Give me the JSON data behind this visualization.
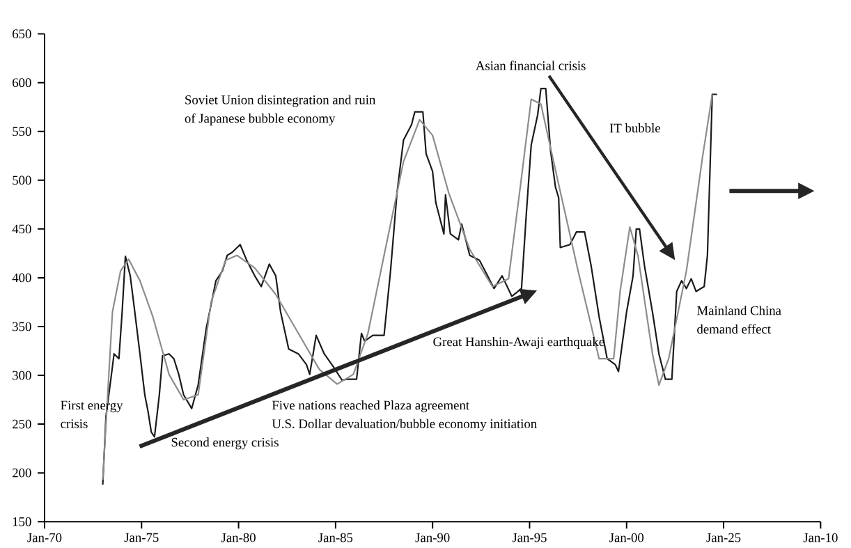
{
  "chart_data": {
    "type": "line",
    "xlim": [
      "1970-01",
      "2010-01"
    ],
    "ylim": [
      150,
      650
    ],
    "xticks": [
      {
        "value": "1970-01",
        "label": "Jan-70"
      },
      {
        "value": "1975-01",
        "label": "Jan-75"
      },
      {
        "value": "1980-01",
        "label": "Jan-80"
      },
      {
        "value": "1985-01",
        "label": "Jan-85"
      },
      {
        "value": "1990-01",
        "label": "Jan-90"
      },
      {
        "value": "1995-01",
        "label": "Jan-95"
      },
      {
        "value": "2000-01",
        "label": "Jan-00"
      },
      {
        "value": "2005-01",
        "label": "Jan-25"
      },
      {
        "value": "2010-01",
        "label": "Jan-10"
      }
    ],
    "yticks": [
      150,
      200,
      250,
      300,
      350,
      400,
      450,
      500,
      550,
      600,
      650
    ],
    "grid": false,
    "legend": false,
    "marker": "none",
    "line_style": "solid",
    "series": [
      {
        "color": "#1a1a1a",
        "x": [
          "1973-01",
          "1973-03",
          "1973-06",
          "1973-08",
          "1973-11",
          "1974-01",
          "1974-03",
          "1974-06",
          "1974-08",
          "1974-12",
          "1975-03",
          "1975-05",
          "1975-07",
          "1975-09",
          "1975-12",
          "1976-02",
          "1976-06",
          "1976-09",
          "1976-12",
          "1977-03",
          "1977-08",
          "1977-12",
          "1978-05",
          "1978-11",
          "1979-03",
          "1979-06",
          "1979-09",
          "1980-02",
          "1980-06",
          "1980-11",
          "1981-03",
          "1981-08",
          "1981-12",
          "1982-03",
          "1982-08",
          "1983-02",
          "1983-07",
          "1983-09",
          "1984-01",
          "1984-06",
          "1984-12",
          "1985-05",
          "1985-08",
          "1986-02",
          "1986-05",
          "1986-07",
          "1986-12",
          "1987-07",
          "1987-11",
          "1988-03",
          "1988-07",
          "1988-12",
          "1989-02",
          "1989-07",
          "1989-09",
          "1990-01",
          "1990-03",
          "1990-08",
          "1990-09",
          "1990-12",
          "1991-05",
          "1991-07",
          "1991-12",
          "1992-06",
          "1992-11",
          "1993-03",
          "1993-08",
          "1994-02",
          "1994-08",
          "1994-11",
          "1995-02",
          "1995-06",
          "1995-08",
          "1995-11",
          "1996-02",
          "1996-05",
          "1996-07",
          "1996-08",
          "1997-02",
          "1997-06",
          "1997-11",
          "1998-03",
          "1998-08",
          "1999-01",
          "1999-06",
          "1999-08",
          "2000-01",
          "2000-05",
          "2000-07",
          "2000-09",
          "2000-12",
          "2001-05",
          "2001-09",
          "2002-01",
          "2002-05",
          "2002-08",
          "2002-11",
          "2003-02",
          "2003-05",
          "2003-08",
          "2004-01",
          "2004-03",
          "2004-06",
          "2004-09"
        ],
        "values": [
          188,
          258,
          296,
          322,
          317,
          365,
          422,
          402,
          376,
          322,
          280,
          263,
          242,
          237,
          280,
          320,
          322,
          317,
          301,
          280,
          266,
          290,
          348,
          397,
          407,
          423,
          426,
          434,
          418,
          402,
          391,
          414,
          402,
          365,
          327,
          322,
          311,
          301,
          341,
          322,
          308,
          295,
          296,
          296,
          343,
          335,
          341,
          341,
          407,
          487,
          541,
          557,
          570,
          570,
          527,
          509,
          477,
          445,
          485,
          445,
          439,
          455,
          423,
          418,
          402,
          389,
          402,
          381,
          389,
          466,
          536,
          567,
          594,
          594,
          530,
          493,
          482,
          431,
          434,
          447,
          447,
          413,
          360,
          317,
          311,
          304,
          365,
          402,
          450,
          450,
          413,
          365,
          322,
          296,
          296,
          386,
          397,
          389,
          399,
          386,
          391,
          423,
          588,
          588
        ]
      },
      {
        "color": "#8c8c8c",
        "x": [
          "1973-01",
          "1973-07",
          "1973-12",
          "1974-05",
          "1974-12",
          "1975-08",
          "1976-06",
          "1977-03",
          "1977-12",
          "1978-08",
          "1979-05",
          "1979-12",
          "1980-11",
          "1981-12",
          "1983-02",
          "1984-03",
          "1985-02",
          "1985-12",
          "1986-09",
          "1987-07",
          "1988-07",
          "1989-05",
          "1990-01",
          "1990-11",
          "1991-12",
          "1993-02",
          "1993-12",
          "1994-08",
          "1995-02",
          "1995-08",
          "1996-06",
          "1997-07",
          "1998-08",
          "1999-05",
          "1999-09",
          "2000-03",
          "2000-08",
          "2001-05",
          "2001-09",
          "2002-03",
          "2003-02",
          "2003-12",
          "2004-06"
        ],
        "values": [
          193,
          365,
          407,
          419,
          397,
          360,
          301,
          275,
          280,
          375,
          418,
          423,
          410,
          383,
          343,
          306,
          291,
          301,
          343,
          423,
          519,
          562,
          546,
          487,
          429,
          391,
          399,
          503,
          583,
          578,
          503,
          407,
          317,
          317,
          386,
          452,
          423,
          322,
          290,
          317,
          407,
          524,
          588
        ]
      }
    ],
    "annotations": [
      "First energy",
      "crisis",
      "Second energy crisis",
      "Five nations reached Plaza agreement",
      "U.S. Dollar devaluation/bubble economy initiation",
      "Great Hanshin-Awaji earthquake",
      "Soviet Union disintegration and ruin",
      "of Japanese bubble economy",
      "Asian financial crisis",
      "IT bubble",
      "Mainland China",
      "demand effect"
    ]
  }
}
